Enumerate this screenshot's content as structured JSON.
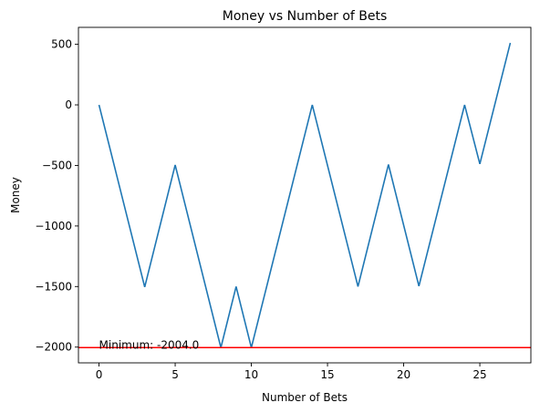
{
  "chart_data": {
    "type": "line",
    "title": "Money vs Number of Bets",
    "xlabel": "Number of Bets",
    "ylabel": "Money",
    "xlim": [
      -1.35,
      28.35
    ],
    "ylim": [
      -2130,
      640
    ],
    "xticks": [
      0,
      5,
      10,
      15,
      20,
      25
    ],
    "yticks": [
      500,
      0,
      -500,
      -1000,
      -1500,
      -2000
    ],
    "xtick_labels": [
      "0",
      "5",
      "10",
      "15",
      "20",
      "25"
    ],
    "ytick_labels": [
      "500",
      "0",
      "−500",
      "−1000",
      "−1500",
      "−2000"
    ],
    "grid": false,
    "series": [
      {
        "color": "#1f77b4",
        "x": [
          0,
          3,
          5,
          8,
          9,
          10,
          14,
          17,
          19,
          21,
          24,
          25,
          27
        ],
        "y": [
          0,
          -1504,
          -496,
          -2004,
          -1500,
          -2004,
          0,
          -1500,
          -492,
          -1496,
          0,
          -488,
          512
        ]
      }
    ],
    "hline": {
      "y": -2004.0,
      "color": "#ff0000"
    },
    "annotation": {
      "text": "Minimum: -2004.0",
      "x": 0,
      "y": -2004.0
    }
  }
}
